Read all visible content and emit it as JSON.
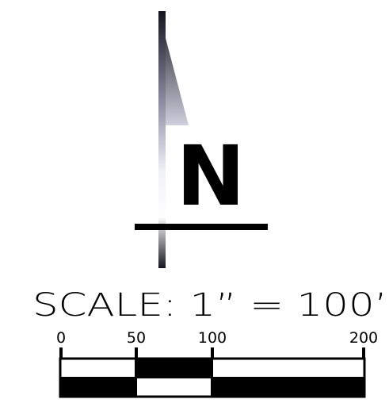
{
  "north_arrow": {
    "letter": "N",
    "shaft_gradient": [
      "#1a1a24",
      "#7a7a90",
      "#e8e8f2",
      "#ffffff",
      "#1a1a24"
    ]
  },
  "scale": {
    "label": "SCALE: 1” = 100’",
    "ticks": [
      "0",
      "50",
      "100",
      "200"
    ]
  },
  "colors": {
    "ink": "#000000",
    "paper": "#ffffff"
  }
}
